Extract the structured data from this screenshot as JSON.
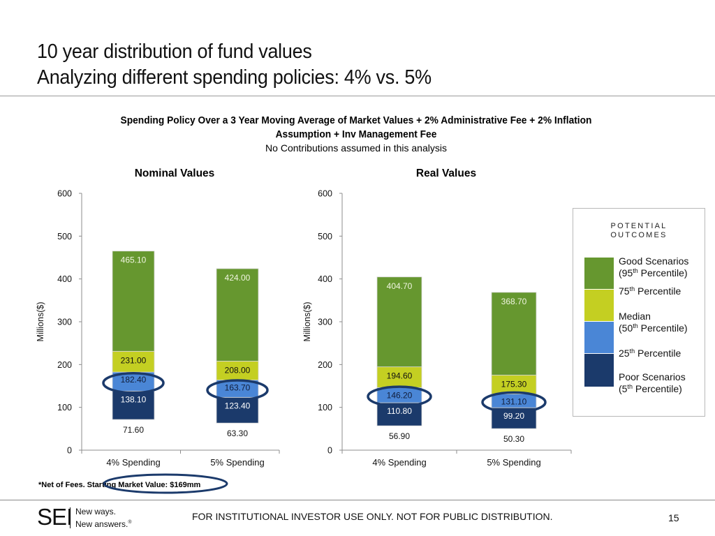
{
  "header": {
    "title_line1": "10 year distribution of fund values",
    "title_line2": "Analyzing different spending policies: 4% vs. 5%"
  },
  "subtitle": {
    "line1": "Spending Policy Over a 3 Year Moving Average of Market Values + 2% Administrative Fee + 2% Inflation",
    "line2": "Assumption + Inv Management Fee",
    "note": "No Contributions assumed in this analysis"
  },
  "colors": {
    "good": "#66972f",
    "p75": "#c4cf22",
    "median": "#4a86d6",
    "poor": "#1b3a6b",
    "highlight_ring": "#1b3a6b"
  },
  "chart_data": [
    {
      "type": "bar",
      "stacked": "floating-range",
      "title": "Nominal Values",
      "ylabel": "Millions($)",
      "xlabel": "",
      "ylim": [
        0,
        600
      ],
      "yticks": [
        "0",
        "100",
        "200",
        "300",
        "400",
        "500",
        "600"
      ],
      "categories": [
        "4% Spending",
        "5% Spending"
      ],
      "series": [
        {
          "name": "Poor Scenarios (5th Percentile)",
          "values": [
            71.6,
            63.3
          ],
          "labels": [
            "71.60",
            "63.30"
          ]
        },
        {
          "name": "25th Percentile",
          "values": [
            138.1,
            123.4
          ],
          "labels": [
            "138.10",
            "123.40"
          ]
        },
        {
          "name": "Median (50th Percentile)",
          "values": [
            182.4,
            163.7
          ],
          "labels": [
            "182.40",
            "163.70"
          ],
          "highlighted": true
        },
        {
          "name": "75th Percentile",
          "values": [
            231.0,
            208.0
          ],
          "labels": [
            "231.00",
            "208.00"
          ]
        },
        {
          "name": "Good Scenarios (95th Percentile)",
          "values": [
            465.1,
            424.0
          ],
          "labels": [
            "465.10",
            "424.00"
          ]
        }
      ],
      "grid": false,
      "legend": "right"
    },
    {
      "type": "bar",
      "stacked": "floating-range",
      "title": "Real Values",
      "ylabel": "Millions($)",
      "xlabel": "",
      "ylim": [
        0,
        600
      ],
      "yticks": [
        "0",
        "100",
        "200",
        "300",
        "400",
        "500",
        "600"
      ],
      "categories": [
        "4% Spending",
        "5% Spending"
      ],
      "series": [
        {
          "name": "Poor Scenarios (5th Percentile)",
          "values": [
            56.9,
            50.3
          ],
          "labels": [
            "56.90",
            "50.30"
          ]
        },
        {
          "name": "25th Percentile",
          "values": [
            110.8,
            99.2
          ],
          "labels": [
            "110.80",
            "99.20"
          ]
        },
        {
          "name": "Median (50th Percentile)",
          "values": [
            146.2,
            131.1
          ],
          "labels": [
            "146.20",
            "131.10"
          ],
          "highlighted": true
        },
        {
          "name": "75th Percentile",
          "values": [
            194.6,
            175.3
          ],
          "labels": [
            "194.60",
            "175.30"
          ]
        },
        {
          "name": "Good Scenarios (95th Percentile)",
          "values": [
            404.7,
            368.7
          ],
          "labels": [
            "404.70",
            "368.70"
          ]
        }
      ],
      "grid": false,
      "legend": "right"
    }
  ],
  "legend": {
    "heading_line1": "POTENTIAL",
    "heading_line2": "OUTCOMES",
    "items": [
      {
        "line1": "Good Scenarios",
        "line2_pre": "(95",
        "sup": "th",
        "line2_post": " Percentile)"
      },
      {
        "pre": "75",
        "sup": "th",
        "post": " Percentile"
      },
      {
        "line1": "Median",
        "line2_pre": "(50",
        "sup": "th",
        "line2_post": " Percentile)"
      },
      {
        "pre": "25",
        "sup": "th",
        "post": " Percentile"
      },
      {
        "line1": "Poor Scenarios",
        "line2_pre": "(5",
        "sup": "th",
        "line2_post": " Percentile)"
      }
    ]
  },
  "footnote": "*Net of Fees. Starting Market Value: $169mm",
  "footer": {
    "logo": "SEI",
    "tagline_line1": "New ways.",
    "tagline_line2": "New answers.",
    "tagline_mark": "®",
    "disclaimer": "FOR INSTITUTIONAL INVESTOR USE ONLY. NOT FOR PUBLIC DISTRIBUTION.",
    "page_number": "15"
  }
}
